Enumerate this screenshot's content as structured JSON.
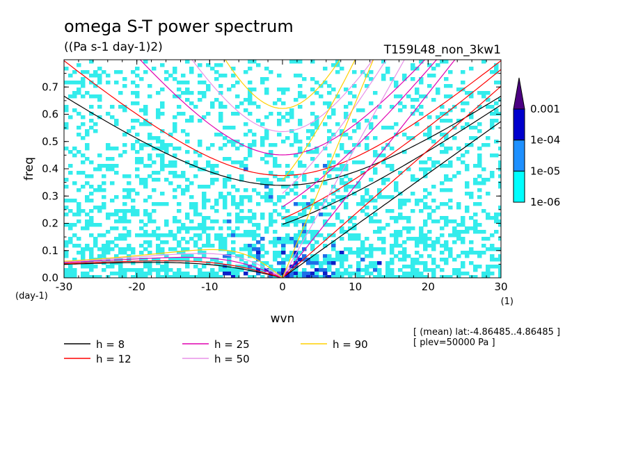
{
  "chart_data": {
    "type": "heatmap",
    "title": "omega S-T power spectrum",
    "subtitle": "((Pa s-1 day-1)2)",
    "run_label": "T159L48_non_3kw1",
    "xlabel": "wvn",
    "ylabel": "freq",
    "x_unit_label": "(1)",
    "y_unit_label": "(day-1)",
    "xlim": [
      -30,
      30
    ],
    "ylim": [
      0,
      0.8
    ],
    "x_ticks": [
      -30,
      -20,
      -10,
      0,
      10,
      20,
      30
    ],
    "x_tick_labels": [
      "-30",
      "-20",
      "-10",
      "0",
      "10",
      "20",
      "30"
    ],
    "y_ticks": [
      0,
      0.1,
      0.2,
      0.3,
      0.4,
      0.5,
      0.6,
      0.7
    ],
    "y_tick_labels": [
      "0.0",
      "0.1",
      "0.2",
      "0.3",
      "0.4",
      "0.5",
      "0.6",
      "0.7"
    ],
    "colorbar": {
      "levels": [
        "1e-06",
        "1e-05",
        "1e-04",
        "0.001"
      ],
      "colors": [
        "#00ffff",
        "#1e90ff",
        "#0000cd",
        "#4b0082"
      ],
      "extend": "max"
    },
    "fill_colors": {
      "light": "#33ecec",
      "medium": "#1f6fe8",
      "dark": "#0a1fc8"
    },
    "dispersion_curves": [
      {
        "label": "h = 8",
        "h": 8,
        "color": "#000000"
      },
      {
        "label": "h = 12",
        "h": 12,
        "color": "#ff0000"
      },
      {
        "label": "h = 25",
        "h": 25,
        "color": "#e000b0"
      },
      {
        "label": "h = 50",
        "h": 50,
        "color": "#e890e8"
      },
      {
        "label": "h = 90",
        "h": 90,
        "color": "#ffd000"
      }
    ],
    "annotations": [
      "[ (mean) lat:-4.86485..4.86485 ]",
      "[ plev=50000 Pa ]"
    ]
  }
}
